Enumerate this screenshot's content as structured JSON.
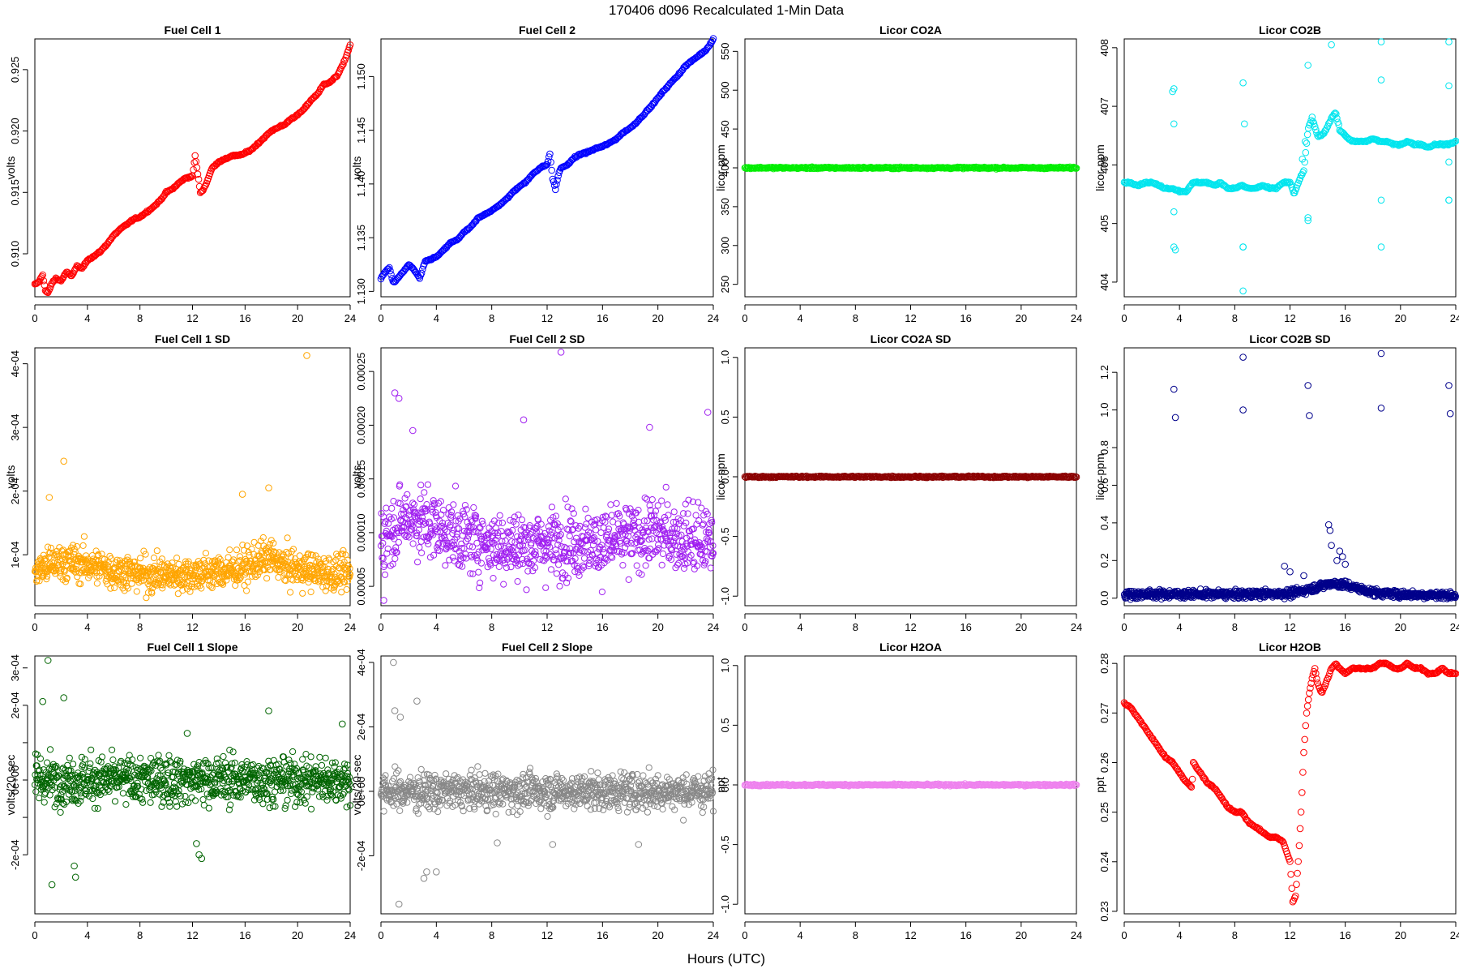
{
  "title": "170406   d096   Recalculated 1-Min Data",
  "xlabel": "Hours (UTC)",
  "chart_data": [
    {
      "type": "scatter",
      "title": "Fuel Cell 1",
      "ylabel": "volts",
      "color": "#ff0000",
      "xlim": [
        0,
        24
      ],
      "ylim": [
        0.9065,
        0.9275
      ],
      "xticks": [
        0,
        4,
        8,
        12,
        16,
        20,
        24
      ],
      "yticks": [
        0.91,
        0.915,
        0.92,
        0.925
      ],
      "ytick_labels": [
        "0.910",
        "0.915",
        "0.920",
        "0.925"
      ],
      "dense": true,
      "x": [
        0,
        0.3,
        0.6,
        0.8,
        1.0,
        1.3,
        1.6,
        2.0,
        2.4,
        2.8,
        3.2,
        3.6,
        4.0,
        4.5,
        5.0,
        5.5,
        6.0,
        6.5,
        7.0,
        7.5,
        8.0,
        8.5,
        9.0,
        9.5,
        10.0,
        10.5,
        11.0,
        11.5,
        12.0,
        12.2,
        12.4,
        12.6,
        12.8,
        13.0,
        13.5,
        14.0,
        14.5,
        15.0,
        15.5,
        16.0,
        16.5,
        17.0,
        17.5,
        18.0,
        18.5,
        19.0,
        19.5,
        20.0,
        20.5,
        21.0,
        21.5,
        22.0,
        22.5,
        23.0,
        23.5,
        24.0
      ],
      "y": [
        0.9075,
        0.9077,
        0.9083,
        0.907,
        0.9068,
        0.9076,
        0.908,
        0.9078,
        0.9085,
        0.9082,
        0.909,
        0.9088,
        0.9095,
        0.9098,
        0.9102,
        0.9108,
        0.9115,
        0.912,
        0.9124,
        0.9128,
        0.913,
        0.9134,
        0.9138,
        0.9143,
        0.915,
        0.9153,
        0.9158,
        0.9162,
        0.9163,
        0.918,
        0.9165,
        0.915,
        0.9152,
        0.9156,
        0.917,
        0.9175,
        0.9177,
        0.918,
        0.918,
        0.9182,
        0.9185,
        0.919,
        0.9195,
        0.92,
        0.9203,
        0.9205,
        0.921,
        0.9213,
        0.9218,
        0.9225,
        0.923,
        0.9238,
        0.924,
        0.9245,
        0.9255,
        0.927
      ]
    },
    {
      "type": "scatter",
      "title": "Fuel Cell 2",
      "ylabel": "volts",
      "color": "#0000ff",
      "xlim": [
        0,
        24
      ],
      "ylim": [
        1.1295,
        1.1535
      ],
      "xticks": [
        0,
        4,
        8,
        12,
        16,
        20,
        24
      ],
      "yticks": [
        1.13,
        1.135,
        1.14,
        1.145,
        1.15
      ],
      "ytick_labels": [
        "1.130",
        "1.135",
        "1.140",
        "1.145",
        "1.150"
      ],
      "dense": true,
      "x": [
        0,
        0.3,
        0.6,
        0.9,
        1.2,
        1.6,
        2.0,
        2.4,
        2.8,
        3.2,
        3.6,
        4.0,
        4.5,
        5.0,
        5.5,
        6.0,
        6.5,
        7.0,
        7.5,
        8.0,
        8.5,
        9.0,
        9.5,
        10.0,
        10.5,
        11.0,
        11.5,
        12.0,
        12.2,
        12.4,
        12.6,
        12.8,
        13.0,
        13.5,
        14.0,
        14.5,
        15.0,
        15.5,
        16.0,
        16.5,
        17.0,
        17.5,
        18.0,
        18.5,
        19.0,
        19.5,
        20.0,
        20.5,
        21.0,
        21.5,
        22.0,
        22.5,
        23.0,
        23.5,
        24.0
      ],
      "y": [
        1.1312,
        1.1318,
        1.1322,
        1.1308,
        1.1312,
        1.1318,
        1.1325,
        1.132,
        1.1312,
        1.1328,
        1.133,
        1.1332,
        1.1338,
        1.1345,
        1.1348,
        1.1355,
        1.136,
        1.1368,
        1.1372,
        1.1375,
        1.138,
        1.1385,
        1.1392,
        1.1398,
        1.1402,
        1.141,
        1.1415,
        1.1418,
        1.1428,
        1.1405,
        1.1395,
        1.1408,
        1.1415,
        1.1418,
        1.1425,
        1.1428,
        1.143,
        1.1433,
        1.1435,
        1.1438,
        1.1442,
        1.1448,
        1.1452,
        1.1458,
        1.1465,
        1.1472,
        1.148,
        1.1488,
        1.1495,
        1.1502,
        1.151,
        1.1515,
        1.152,
        1.1525,
        1.1535
      ]
    },
    {
      "type": "scatter",
      "title": "Licor CO2A",
      "ylabel": "licor-ppm",
      "color": "#00ee00",
      "xlim": [
        0,
        24
      ],
      "ylim": [
        234,
        566
      ],
      "xticks": [
        0,
        4,
        8,
        12,
        16,
        20,
        24
      ],
      "yticks": [
        250,
        300,
        350,
        400,
        450,
        500,
        550
      ],
      "ytick_labels": [
        "250",
        "300",
        "350",
        "400",
        "450",
        "500",
        "550"
      ],
      "dense": true,
      "x": [
        0,
        24
      ],
      "y": [
        400,
        400
      ]
    },
    {
      "type": "scatter",
      "title": "Licor CO2B",
      "ylabel": "licor-ppm",
      "color": "#00e5ee",
      "xlim": [
        0,
        24
      ],
      "ylim": [
        403.75,
        408.15
      ],
      "xticks": [
        0,
        4,
        8,
        12,
        16,
        20,
        24
      ],
      "yticks": [
        404,
        405,
        406,
        407,
        408
      ],
      "ytick_labels": [
        "404",
        "405",
        "406",
        "407",
        "408"
      ],
      "dense": true,
      "x": [
        0,
        0.5,
        1.0,
        1.5,
        2.0,
        2.5,
        3.0,
        3.5,
        4.0,
        4.5,
        5.0,
        5.5,
        6.0,
        6.5,
        7.0,
        7.5,
        8.0,
        8.5,
        9.0,
        9.5,
        10.0,
        10.5,
        11.0,
        11.5,
        12.0,
        12.3,
        12.6,
        13.0,
        13.3,
        13.6,
        14.0,
        14.3,
        14.6,
        15.0,
        15.3,
        15.6,
        16.0,
        16.5,
        17.0,
        17.5,
        18.0,
        18.5,
        19.0,
        19.5,
        20.0,
        20.5,
        21.0,
        21.5,
        22.0,
        22.5,
        23.0,
        23.5,
        24.0
      ],
      "y": [
        405.7,
        405.7,
        405.65,
        405.7,
        405.7,
        405.65,
        405.6,
        405.6,
        405.55,
        405.55,
        405.7,
        405.7,
        405.7,
        405.65,
        405.7,
        405.6,
        405.6,
        405.65,
        405.6,
        405.6,
        405.65,
        405.6,
        405.6,
        405.7,
        405.7,
        405.5,
        405.7,
        405.9,
        406.6,
        406.8,
        406.5,
        406.5,
        406.6,
        406.8,
        406.9,
        406.6,
        406.5,
        406.4,
        406.4,
        406.4,
        406.45,
        406.4,
        406.4,
        406.35,
        406.35,
        406.4,
        406.35,
        406.35,
        406.3,
        406.35,
        406.35,
        406.35,
        406.4
      ],
      "outliers_x": [
        3.6,
        3.6,
        3.6,
        3.6,
        8.6,
        8.6,
        8.6,
        8.6,
        8.7,
        13.3,
        13.3,
        13.3,
        15.0,
        18.6,
        18.6,
        18.6,
        18.6,
        23.5,
        23.5,
        23.5,
        23.5,
        23.5,
        12.9,
        13.1,
        3.5,
        3.7
      ],
      "outliers_y": [
        407.3,
        404.6,
        406.7,
        405.2,
        407.4,
        404.6,
        404.6,
        403.85,
        406.7,
        407.7,
        405.1,
        405.05,
        408.05,
        408.1,
        404.6,
        405.4,
        407.45,
        408.1,
        405.4,
        407.35,
        406.05,
        405.4,
        406.1,
        406.4,
        407.25,
        404.55
      ]
    },
    {
      "type": "scatter",
      "title": "Fuel Cell 1 SD",
      "ylabel": "volts",
      "color": "#ffa500",
      "xlim": [
        0,
        24
      ],
      "ylim": [
        2e-05,
        0.000425
      ],
      "xticks": [
        0,
        4,
        8,
        12,
        16,
        20,
        24
      ],
      "yticks": [
        0.0001,
        0.0002,
        0.0003,
        0.0004
      ],
      "ytick_labels": [
        "1e-04",
        "2e-04",
        "3e-04",
        "4e-04"
      ],
      "noise": true,
      "x": [
        0,
        2,
        4,
        6,
        8,
        10,
        12,
        14,
        16,
        17,
        18,
        19,
        20,
        22,
        24
      ],
      "y": [
        7.5e-05,
        9e-05,
        8.5e-05,
        7.5e-05,
        7e-05,
        6.8e-05,
        7e-05,
        7.3e-05,
        8e-05,
        9e-05,
        9.5e-05,
        8.2e-05,
        7.8e-05,
        7.2e-05,
        7e-05
      ],
      "spread": 4e-05,
      "outliers_x": [
        2.2,
        20.7,
        17.8,
        1.1,
        15.8
      ],
      "outliers_y": [
        0.000247,
        0.000413,
        0.000205,
        0.00019,
        0.000195
      ]
    },
    {
      "type": "scatter",
      "title": "Fuel Cell 2 SD",
      "ylabel": "volts",
      "color": "#a020f0",
      "xlim": [
        0,
        24
      ],
      "ylim": [
        3.2e-05,
        0.000272
      ],
      "xticks": [
        0,
        4,
        8,
        12,
        16,
        20,
        24
      ],
      "yticks": [
        5e-05,
        0.0001,
        0.00015,
        0.0002,
        0.00025
      ],
      "ytick_labels": [
        "0.00005",
        "0.00010",
        "0.00015",
        "0.00020",
        "0.00025"
      ],
      "noise": true,
      "x": [
        0,
        2,
        4,
        6,
        8,
        10,
        12,
        14,
        16,
        18,
        20,
        22,
        24
      ],
      "y": [
        9.5e-05,
        0.000115,
        0.000105,
        9.5e-05,
        9e-05,
        8.8e-05,
        9e-05,
        9.2e-05,
        9e-05,
        9.5e-05,
        0.0001,
        9.5e-05,
        9e-05
      ],
      "spread": 4.5e-05,
      "outliers_x": [
        13.0,
        1.0,
        1.3,
        2.3,
        10.3,
        19.4,
        23.6,
        0.2
      ],
      "outliers_y": [
        0.000268,
        0.00023,
        0.000225,
        0.000195,
        0.000205,
        0.000198,
        0.000212,
        3.7e-05
      ]
    },
    {
      "type": "scatter",
      "title": "Licor CO2A SD",
      "ylabel": "licor-ppm",
      "color": "#8b0000",
      "xlim": [
        0,
        24
      ],
      "ylim": [
        -1.08,
        1.08
      ],
      "xticks": [
        0,
        4,
        8,
        12,
        16,
        20,
        24
      ],
      "yticks": [
        -1.0,
        -0.5,
        0.0,
        0.5,
        1.0
      ],
      "ytick_labels": [
        "-1.0",
        "-0.5",
        "0.0",
        "0.5",
        "1.0"
      ],
      "dense": true,
      "x": [
        0,
        24
      ],
      "y": [
        0,
        0
      ]
    },
    {
      "type": "scatter",
      "title": "Licor CO2B SD",
      "ylabel": "licor-ppm",
      "color": "#00008b",
      "xlim": [
        0,
        24
      ],
      "ylim": [
        -0.04,
        1.33
      ],
      "xticks": [
        0,
        4,
        8,
        12,
        16,
        20,
        24
      ],
      "yticks": [
        0.0,
        0.2,
        0.4,
        0.6,
        0.8,
        1.0,
        1.2
      ],
      "ytick_labels": [
        "0.0",
        "0.2",
        "0.4",
        "0.6",
        "0.8",
        "1.0",
        "1.2"
      ],
      "noise": true,
      "x": [
        0,
        4,
        8,
        12,
        13,
        14,
        15,
        16,
        17,
        18,
        20,
        24
      ],
      "y": [
        0.02,
        0.022,
        0.02,
        0.025,
        0.04,
        0.06,
        0.08,
        0.07,
        0.05,
        0.03,
        0.02,
        0.015
      ],
      "spread": 0.03,
      "outliers_x": [
        3.6,
        3.7,
        8.6,
        8.6,
        13.3,
        13.4,
        18.6,
        18.6,
        23.5,
        23.6,
        14.8,
        14.9,
        15.0,
        15.4,
        15.6,
        15.8,
        16.0,
        11.6,
        12.0,
        13.0
      ],
      "outliers_y": [
        1.11,
        0.96,
        1.28,
        1.0,
        1.13,
        0.97,
        1.3,
        1.01,
        1.13,
        0.98,
        0.39,
        0.36,
        0.28,
        0.2,
        0.25,
        0.22,
        0.18,
        0.17,
        0.14,
        0.12
      ]
    },
    {
      "type": "scatter",
      "title": "Fuel Cell 1 Slope",
      "ylabel": "volts/20-sec",
      "color": "#006400",
      "xlim": [
        0,
        24
      ],
      "ylim": [
        -0.000358,
        0.000332
      ],
      "xticks": [
        0,
        4,
        8,
        12,
        16,
        20,
        24
      ],
      "yticks": [
        -0.0002,
        0,
        0.0002
      ],
      "ytick_labels": [
        "-2e-04",
        "0e+00",
        "2e-04"
      ],
      "minor_yticks": [
        -0.0001,
        0.0001,
        0.0003
      ],
      "minor_ytick_labels": [
        "",
        "",
        "3e-04"
      ],
      "noise": true,
      "x": [
        0,
        24
      ],
      "y": [
        0,
        0
      ],
      "spread": 9e-05,
      "outliers_x": [
        1.0,
        1.3,
        3.0,
        3.1,
        2.2,
        0.6,
        12.3,
        12.5,
        12.7,
        11.6,
        17.8,
        23.4
      ],
      "outliers_y": [
        0.00032,
        -0.00028,
        -0.00023,
        -0.00026,
        0.00022,
        0.00021,
        -0.00017,
        -0.0002,
        -0.00021,
        0.000125,
        0.000185,
        0.00015
      ]
    },
    {
      "type": "scatter",
      "title": "Fuel Cell 2 Slope",
      "ylabel": "volts/20-sec",
      "color": "#888888",
      "xlim": [
        0,
        24
      ],
      "ylim": [
        -0.00038,
        0.00042
      ],
      "xticks": [
        0,
        4,
        8,
        12,
        16,
        20,
        24
      ],
      "yticks": [
        -0.0002,
        0,
        0.0002,
        0.0004
      ],
      "ytick_labels": [
        "-2e-04",
        "0e+00",
        "2e-04",
        "4e-04"
      ],
      "noise": true,
      "x": [
        0,
        24
      ],
      "y": [
        0,
        0
      ],
      "spread": 8e-05,
      "outliers_x": [
        0.9,
        1.3,
        2.6,
        3.1,
        3.3,
        1.0,
        1.4,
        4.0,
        18.6,
        8.4,
        12.4
      ],
      "outliers_y": [
        0.0004,
        -0.00035,
        0.00028,
        -0.00027,
        -0.00025,
        0.00025,
        0.00023,
        -0.00025,
        -0.000165,
        -0.00016,
        -0.000165
      ]
    },
    {
      "type": "scatter",
      "title": "Licor H2OA",
      "ylabel": "ppt",
      "color": "#ee82ee",
      "xlim": [
        0,
        24
      ],
      "ylim": [
        -1.08,
        1.08
      ],
      "xticks": [
        0,
        4,
        8,
        12,
        16,
        20,
        24
      ],
      "yticks": [
        -1.0,
        -0.5,
        0.0,
        0.5,
        1.0
      ],
      "ytick_labels": [
        "-1.0",
        "-0.5",
        "0.0",
        "0.5",
        "1.0"
      ],
      "dense": true,
      "x": [
        0,
        24
      ],
      "y": [
        0,
        0
      ]
    },
    {
      "type": "scatter",
      "title": "Licor H2OB",
      "ylabel": "ppt",
      "color": "#ff0000",
      "xlim": [
        0,
        24
      ],
      "ylim": [
        0.2295,
        0.2815
      ],
      "xticks": [
        0,
        4,
        8,
        12,
        16,
        20,
        24
      ],
      "yticks": [
        0.23,
        0.24,
        0.25,
        0.26,
        0.27,
        0.28
      ],
      "ytick_labels": [
        "0.23",
        "0.24",
        "0.25",
        "0.26",
        "0.27",
        "0.28"
      ],
      "dense": true,
      "x": [
        0,
        0.5,
        1.0,
        1.5,
        2.0,
        2.5,
        3.0,
        3.5,
        4.0,
        4.5,
        4.9,
        5.0,
        5.5,
        6.0,
        6.5,
        7.0,
        7.5,
        8.0,
        8.5,
        9.0,
        9.5,
        10.0,
        10.5,
        11.0,
        11.5,
        12.0,
        12.2,
        12.4,
        12.6,
        12.8,
        13.0,
        13.2,
        13.4,
        13.6,
        13.8,
        14.0,
        14.3,
        14.6,
        15.0,
        15.3,
        15.6,
        16.0,
        16.5,
        17.0,
        17.5,
        18.0,
        18.5,
        19.0,
        19.5,
        20.0,
        20.5,
        21.0,
        21.5,
        22.0,
        22.5,
        23.0,
        23.5,
        24.0
      ],
      "y": [
        0.272,
        0.271,
        0.269,
        0.267,
        0.265,
        0.263,
        0.261,
        0.26,
        0.258,
        0.256,
        0.255,
        0.26,
        0.258,
        0.256,
        0.255,
        0.253,
        0.251,
        0.25,
        0.25,
        0.248,
        0.247,
        0.246,
        0.245,
        0.245,
        0.244,
        0.24,
        0.232,
        0.233,
        0.24,
        0.25,
        0.262,
        0.27,
        0.274,
        0.277,
        0.279,
        0.276,
        0.274,
        0.276,
        0.279,
        0.28,
        0.279,
        0.278,
        0.279,
        0.279,
        0.279,
        0.279,
        0.28,
        0.28,
        0.279,
        0.279,
        0.28,
        0.279,
        0.279,
        0.278,
        0.278,
        0.279,
        0.278,
        0.278
      ]
    }
  ]
}
